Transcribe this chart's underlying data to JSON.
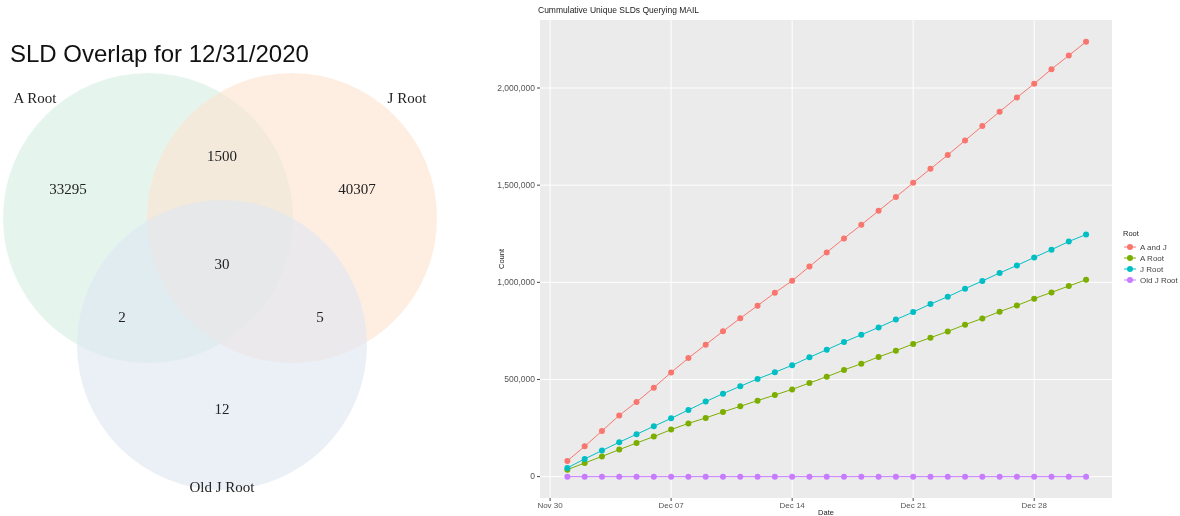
{
  "chart_data": [
    {
      "type": "other",
      "title": "SLD Overlap for 12/31/2020",
      "annotations": [
        "A Root",
        "J Root",
        "Old J Root",
        "33295",
        "40307",
        "12",
        "1500",
        "2",
        "5",
        "30"
      ]
    },
    {
      "type": "line",
      "title": "Cummulative Unique SLDs Querying MAIL",
      "xlabel": "Date",
      "ylabel": "Count",
      "legend_title": "Root",
      "x": [
        "2020-12-01",
        "2020-12-02",
        "2020-12-03",
        "2020-12-04",
        "2020-12-05",
        "2020-12-06",
        "2020-12-07",
        "2020-12-08",
        "2020-12-09",
        "2020-12-10",
        "2020-12-11",
        "2020-12-12",
        "2020-12-13",
        "2020-12-14",
        "2020-12-15",
        "2020-12-16",
        "2020-12-17",
        "2020-12-18",
        "2020-12-19",
        "2020-12-20",
        "2020-12-21",
        "2020-12-22",
        "2020-12-23",
        "2020-12-24",
        "2020-12-25",
        "2020-12-26",
        "2020-12-27",
        "2020-12-28",
        "2020-12-29",
        "2020-12-30",
        "2020-12-31"
      ],
      "series": [
        {
          "name": "A and J",
          "color": "#f8766d",
          "values": [
            81000,
            156000,
            235000,
            315000,
            384000,
            458000,
            536000,
            610000,
            679000,
            748000,
            815000,
            880000,
            946000,
            1008000,
            1081000,
            1154000,
            1226000,
            1296000,
            1368000,
            1439000,
            1512000,
            1584000,
            1655000,
            1730000,
            1804000,
            1878000,
            1951000,
            2022000,
            2097000,
            2167000,
            2238000
          ]
        },
        {
          "name": "A Root",
          "color": "#7cae00",
          "values": [
            36000,
            70000,
            104000,
            139000,
            173000,
            206000,
            242000,
            274000,
            302000,
            333000,
            362000,
            391000,
            420000,
            449000,
            482000,
            514000,
            549000,
            581000,
            616000,
            648000,
            683000,
            715000,
            747000,
            782000,
            814000,
            849000,
            881000,
            916000,
            948000,
            981000,
            1013000
          ]
        },
        {
          "name": "J Root",
          "color": "#00bfc4",
          "values": [
            45000,
            91000,
            134000,
            177000,
            218000,
            259000,
            300000,
            343000,
            386000,
            427000,
            465000,
            503000,
            537000,
            573000,
            614000,
            653000,
            693000,
            730000,
            768000,
            808000,
            847000,
            888000,
            926000,
            967000,
            1007000,
            1048000,
            1087000,
            1128000,
            1168000,
            1210000,
            1246000
          ]
        },
        {
          "name": "Old J Root",
          "color": "#c77cff",
          "values": [
            0,
            0,
            0,
            0,
            0,
            0,
            0,
            0,
            0,
            0,
            0,
            0,
            0,
            0,
            0,
            0,
            0,
            0,
            0,
            0,
            0,
            0,
            0,
            0,
            0,
            0,
            0,
            0,
            0,
            0,
            0
          ]
        }
      ],
      "xlim": [
        "2020-11-29T10:00",
        "2021-01-01T12:00"
      ],
      "xticks": [
        {
          "value": "2020-11-30",
          "label": "Nov 30"
        },
        {
          "value": "2020-12-07",
          "label": "Dec 07"
        },
        {
          "value": "2020-12-14",
          "label": "Dec 14"
        },
        {
          "value": "2020-12-21",
          "label": "Dec 21"
        },
        {
          "value": "2020-12-28",
          "label": "Dec 28"
        }
      ],
      "ylim": [
        -110000,
        2350000
      ],
      "yticks": [
        {
          "value": 0,
          "label": "0"
        },
        {
          "value": 500000,
          "label": "500,000"
        },
        {
          "value": 1000000,
          "label": "1,000,000"
        },
        {
          "value": 1500000,
          "label": "1,500,000"
        },
        {
          "value": 2000000,
          "label": "2,000,000"
        }
      ],
      "grid": true,
      "legend": "right",
      "marker": "circle",
      "line_style": "solid"
    }
  ]
}
